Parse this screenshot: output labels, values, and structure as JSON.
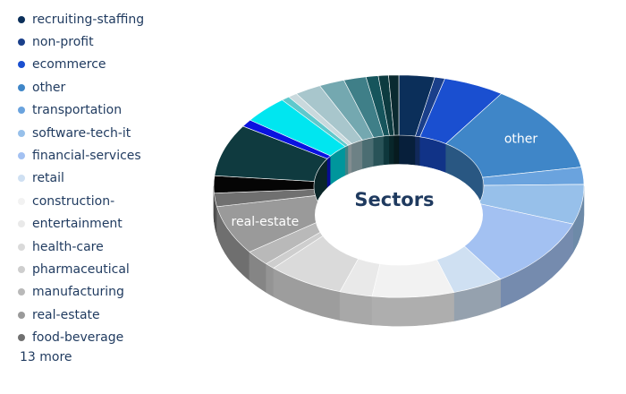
{
  "chart_data": {
    "type": "pie",
    "variant": "3d-donut",
    "center_label": "Sectors",
    "slice_labels_shown": [
      "other",
      "real-estate"
    ],
    "legend_position": "left",
    "legend_more": "13 more",
    "slices": [
      {
        "name": "recruiting-staffing",
        "value": 3.5,
        "color": "#0b2f5a"
      },
      {
        "name": "non-profit",
        "value": 1.0,
        "color": "#1a3f8a"
      },
      {
        "name": "ecommerce",
        "value": 6.0,
        "color": "#1a4fd0"
      },
      {
        "name": "other",
        "value": 14.5,
        "color": "#3f86c8"
      },
      {
        "name": "transportation",
        "value": 2.8,
        "color": "#6aa3de"
      },
      {
        "name": "software-tech-it",
        "value": 6.5,
        "color": "#97c0ea"
      },
      {
        "name": "financial-services",
        "value": 11.5,
        "color": "#a3c1f2"
      },
      {
        "name": "retail",
        "value": 5.0,
        "color": "#cfe0f2"
      },
      {
        "name": "construction-",
        "value": 8.0,
        "color": "#f2f2f2"
      },
      {
        "name": "entertainment",
        "value": 3.2,
        "color": "#e9e9e9"
      },
      {
        "name": "health-care",
        "value": 7.5,
        "color": "#dadada"
      },
      {
        "name": "pharmaceutical",
        "value": 1.0,
        "color": "#cecece"
      },
      {
        "name": "manufacturing",
        "value": 2.5,
        "color": "#b9b9b9"
      },
      {
        "name": "real-estate",
        "value": 8.0,
        "color": "#9a9a9a"
      },
      {
        "name": "food-beverage",
        "value": 2.2,
        "color": "#707070"
      },
      {
        "name": "",
        "value": 2.8,
        "color": "#050505"
      },
      {
        "name": "",
        "value": 8.5,
        "color": "#0f3a3f"
      },
      {
        "name": "",
        "value": 1.2,
        "color": "#0a12e0"
      },
      {
        "name": "",
        "value": 4.5,
        "color": "#00e6f0"
      },
      {
        "name": "",
        "value": 0.8,
        "color": "#5fc8cc"
      },
      {
        "name": "",
        "value": 0.9,
        "color": "#c9d9dd"
      },
      {
        "name": "",
        "value": 2.6,
        "color": "#a8c6cc"
      },
      {
        "name": "",
        "value": 2.5,
        "color": "#74a8b0"
      },
      {
        "name": "",
        "value": 2.2,
        "color": "#3f7f88"
      },
      {
        "name": "",
        "value": 1.2,
        "color": "#16555c"
      },
      {
        "name": "",
        "value": 1.0,
        "color": "#0d3b40"
      },
      {
        "name": "",
        "value": 1.0,
        "color": "#0a2a30"
      }
    ]
  }
}
